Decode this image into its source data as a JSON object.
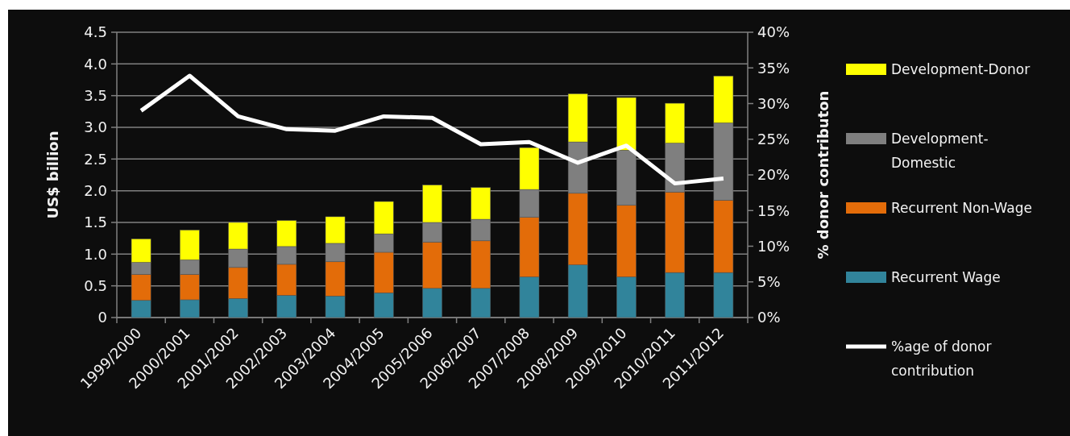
{
  "chart_data": {
    "type": "bar",
    "stacked": true,
    "ylabel": "US$ billion",
    "y2label": "% donor contributon",
    "categories": [
      "1999/2000",
      "2000/2001",
      "2001/2002",
      "2002/2003",
      "2003/2004",
      "2004/2005",
      "2005/2006",
      "2006/2007",
      "2007/2008",
      "2008/2009",
      "2009/2010",
      "2010/2011",
      "2011/2012"
    ],
    "series": [
      {
        "name": "Recurrent Wage",
        "color": "#31849b",
        "values": [
          0.27,
          0.28,
          0.3,
          0.35,
          0.34,
          0.39,
          0.46,
          0.46,
          0.64,
          0.83,
          0.64,
          0.71,
          0.71
        ]
      },
      {
        "name": "Recurrent Non-Wage",
        "color": "#e36c09",
        "values": [
          0.41,
          0.4,
          0.49,
          0.49,
          0.54,
          0.64,
          0.73,
          0.75,
          0.94,
          1.13,
          1.13,
          1.27,
          1.14
        ]
      },
      {
        "name": "Development-Domestic",
        "color": "#7f7f7f",
        "values": [
          0.19,
          0.23,
          0.29,
          0.28,
          0.29,
          0.29,
          0.31,
          0.34,
          0.44,
          0.81,
          0.87,
          0.77,
          1.22
        ]
      },
      {
        "name": "Development-Donor",
        "color": "#ffff00",
        "values": [
          0.37,
          0.47,
          0.42,
          0.41,
          0.42,
          0.51,
          0.59,
          0.5,
          0.66,
          0.76,
          0.83,
          0.63,
          0.74
        ]
      },
      {
        "name": "%age of donor contribution",
        "type": "line",
        "axis": "y2",
        "color": "#ffffff",
        "values": [
          29.0,
          33.9,
          28.2,
          26.4,
          26.2,
          28.2,
          28.0,
          24.3,
          24.6,
          21.7,
          24.1,
          18.8,
          19.5
        ]
      }
    ],
    "ylim": [
      0,
      4.5
    ],
    "yticks": [
      0,
      {
        "value": 0.5,
        "label": "0.5"
      },
      {
        "value": 1,
        "label": "1.0"
      },
      {
        "value": 1.5,
        "label": "1.5"
      },
      {
        "value": 2,
        "label": "2.0"
      },
      {
        "value": 2.5,
        "label": "2.5"
      },
      {
        "value": 3,
        "label": "3.0"
      },
      {
        "value": 3.5,
        "label": "3.5"
      },
      {
        "value": 4,
        "label": "4.0"
      },
      {
        "value": 4.5,
        "label": "4.5"
      }
    ],
    "y2lim": [
      0,
      40
    ],
    "y2ticks": [
      {
        "value": 0,
        "label": "0%"
      },
      {
        "value": 5,
        "label": "5%"
      },
      {
        "value": 10,
        "label": "10%"
      },
      {
        "value": 15,
        "label": "15%"
      },
      {
        "value": 20,
        "label": "20%"
      },
      {
        "value": 25,
        "label": "25%"
      },
      {
        "value": 30,
        "label": "30%"
      },
      {
        "value": 35,
        "label": "35%"
      },
      {
        "value": 40,
        "label": "40%"
      }
    ],
    "grid": "y",
    "legend": "right",
    "marker": "none"
  }
}
